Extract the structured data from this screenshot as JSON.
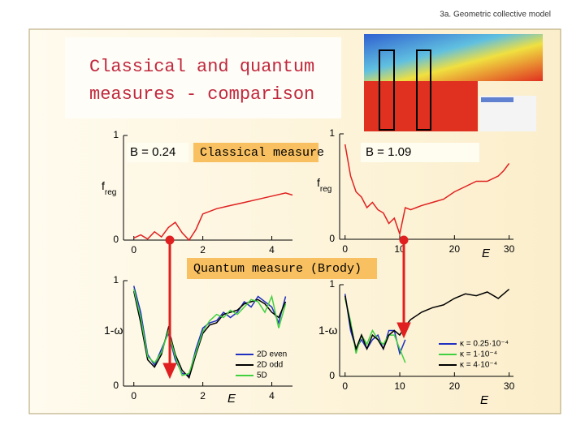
{
  "header": "3a. Geometric collective model",
  "title": [
    "Classical and quantum",
    "measures - comparison"
  ],
  "annotations": {
    "b_left": "B = 0.24",
    "classical": "Classical measure",
    "b_right": "B = 1.09",
    "quantum": "Quantum measure (Brody)"
  },
  "chart_data": [
    {
      "type": "line",
      "ylabel": {
        "text": "f",
        "sub": "reg"
      },
      "xlim": [
        -0.3,
        4.6
      ],
      "ylim": [
        0,
        1
      ],
      "xticks": [
        0,
        2,
        4
      ],
      "yticks": [
        0,
        1
      ],
      "x": [
        0,
        0.2,
        0.4,
        0.6,
        0.8,
        1.0,
        1.2,
        1.4,
        1.6,
        1.8,
        2.0,
        2.4,
        2.8,
        3.2,
        3.6,
        4.0,
        4.4,
        4.6
      ],
      "series": [
        {
          "color": "#e02020",
          "values": [
            0.02,
            0.05,
            0.01,
            0.08,
            0.03,
            0.12,
            0.17,
            0.07,
            0.0,
            0.1,
            0.25,
            0.3,
            0.33,
            0.36,
            0.39,
            0.42,
            0.45,
            0.43
          ]
        }
      ]
    },
    {
      "type": "line",
      "ylabel": {
        "text": "f",
        "sub": "reg"
      },
      "xlabel": "E",
      "xlim": [
        -1,
        30.8
      ],
      "ylim": [
        0,
        1
      ],
      "xticks": [
        0,
        10,
        20,
        30
      ],
      "yticks": [
        0,
        1
      ],
      "x": [
        0,
        1,
        2,
        3,
        4,
        5,
        6,
        7,
        8,
        9,
        10,
        11,
        12,
        13,
        14,
        16,
        18,
        20,
        22,
        24,
        26,
        28,
        29,
        30
      ],
      "series": [
        {
          "color": "#e02020",
          "values": [
            0.9,
            0.6,
            0.45,
            0.4,
            0.3,
            0.35,
            0.28,
            0.25,
            0.15,
            0.2,
            0.05,
            0.3,
            0.28,
            0.3,
            0.32,
            0.35,
            0.38,
            0.45,
            0.5,
            0.55,
            0.55,
            0.6,
            0.65,
            0.72
          ]
        }
      ]
    },
    {
      "type": "line",
      "ylabel": {
        "text": "1-ω"
      },
      "xlabel": "E",
      "xlim": [
        -0.3,
        4.6
      ],
      "ylim": [
        0,
        1
      ],
      "xticks": [
        0,
        2,
        4
      ],
      "yticks": [
        0,
        1
      ],
      "x": [
        0,
        0.2,
        0.4,
        0.6,
        0.8,
        1.0,
        1.2,
        1.4,
        1.6,
        1.8,
        2.0,
        2.2,
        2.4,
        2.6,
        2.8,
        3.0,
        3.2,
        3.4,
        3.6,
        3.8,
        4.0,
        4.2,
        4.4
      ],
      "series": [
        {
          "name": "2D even",
          "color": "#2030c0",
          "values": [
            0.95,
            0.7,
            0.3,
            0.2,
            0.35,
            0.5,
            0.25,
            0.12,
            0.1,
            0.35,
            0.55,
            0.6,
            0.62,
            0.7,
            0.65,
            0.7,
            0.8,
            0.75,
            0.85,
            0.8,
            0.75,
            0.6,
            0.85
          ]
        },
        {
          "name": "2D odd",
          "color": "#000000",
          "values": [
            0.9,
            0.6,
            0.25,
            0.18,
            0.3,
            0.55,
            0.3,
            0.15,
            0.08,
            0.3,
            0.5,
            0.58,
            0.6,
            0.68,
            0.7,
            0.72,
            0.78,
            0.8,
            0.82,
            0.78,
            0.7,
            0.65,
            0.8
          ]
        },
        {
          "name": "5D",
          "color": "#40d040",
          "values": [
            0.92,
            0.65,
            0.28,
            0.22,
            0.32,
            0.52,
            0.28,
            0.1,
            0.12,
            0.32,
            0.52,
            0.62,
            0.68,
            0.65,
            0.72,
            0.68,
            0.75,
            0.82,
            0.8,
            0.7,
            0.85,
            0.55,
            0.78
          ]
        }
      ]
    },
    {
      "type": "line",
      "ylabel": {
        "text": "1-ω"
      },
      "xlabel": "E",
      "xlim": [
        -1,
        30.8
      ],
      "ylim": [
        0,
        1
      ],
      "xticks": [
        0,
        10,
        20,
        30
      ],
      "yticks": [
        0,
        1
      ],
      "x": [
        0,
        1,
        2,
        3,
        4,
        5,
        6,
        7,
        8,
        9,
        10,
        11,
        12,
        14,
        16,
        18,
        20,
        22,
        24,
        26,
        28,
        30
      ],
      "series": [
        {
          "name": "κ = 0.25·10⁻⁴",
          "color": "#2030c0",
          "values": [
            0.9,
            0.5,
            0.3,
            0.4,
            0.3,
            0.4,
            0.45,
            0.3,
            0.5,
            0.5,
            0.25,
            0.4,
            null,
            null,
            null,
            null,
            null,
            null,
            null,
            null,
            null,
            null
          ]
        },
        {
          "name": "κ = 1·10⁻⁴",
          "color": "#40d040",
          "values": [
            0.85,
            0.6,
            0.25,
            0.45,
            0.35,
            0.5,
            0.4,
            0.35,
            0.45,
            0.45,
            0.3,
            0.15,
            null,
            null,
            null,
            null,
            null,
            null,
            null,
            null,
            null,
            null
          ]
        },
        {
          "name": "κ = 4·10⁻⁴",
          "color": "#000000",
          "values": [
            0.88,
            0.55,
            0.3,
            0.45,
            0.3,
            0.45,
            0.4,
            0.3,
            0.45,
            0.5,
            0.45,
            0.55,
            0.62,
            0.7,
            0.75,
            0.78,
            0.85,
            0.9,
            0.88,
            0.92,
            0.85,
            0.95
          ]
        }
      ]
    }
  ]
}
